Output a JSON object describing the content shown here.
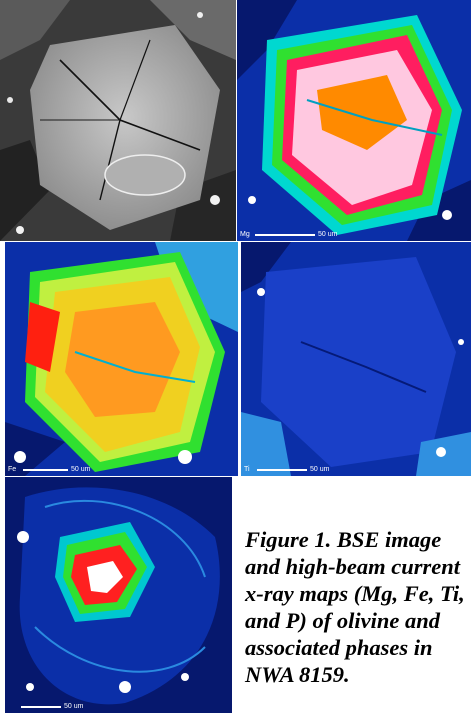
{
  "panels": {
    "bse": {
      "tag": "",
      "scale": ""
    },
    "mg": {
      "tag": "Mg",
      "scale": "50 um"
    },
    "fe": {
      "tag": "Fe",
      "scale": "50 um"
    },
    "ti": {
      "tag": "Ti",
      "scale": "50 um"
    },
    "p": {
      "tag": "",
      "scale": "50 um"
    }
  },
  "caption": "Figure 1. BSE image and high-beam current x-ray maps (Mg, Fe, Ti, and P) of olivine and associated phases in NWA 8159.",
  "colors": {
    "bg_blue": "#0b2fa8",
    "deep_blue": "#06186e",
    "bse_gray": "#9a9a9a"
  }
}
